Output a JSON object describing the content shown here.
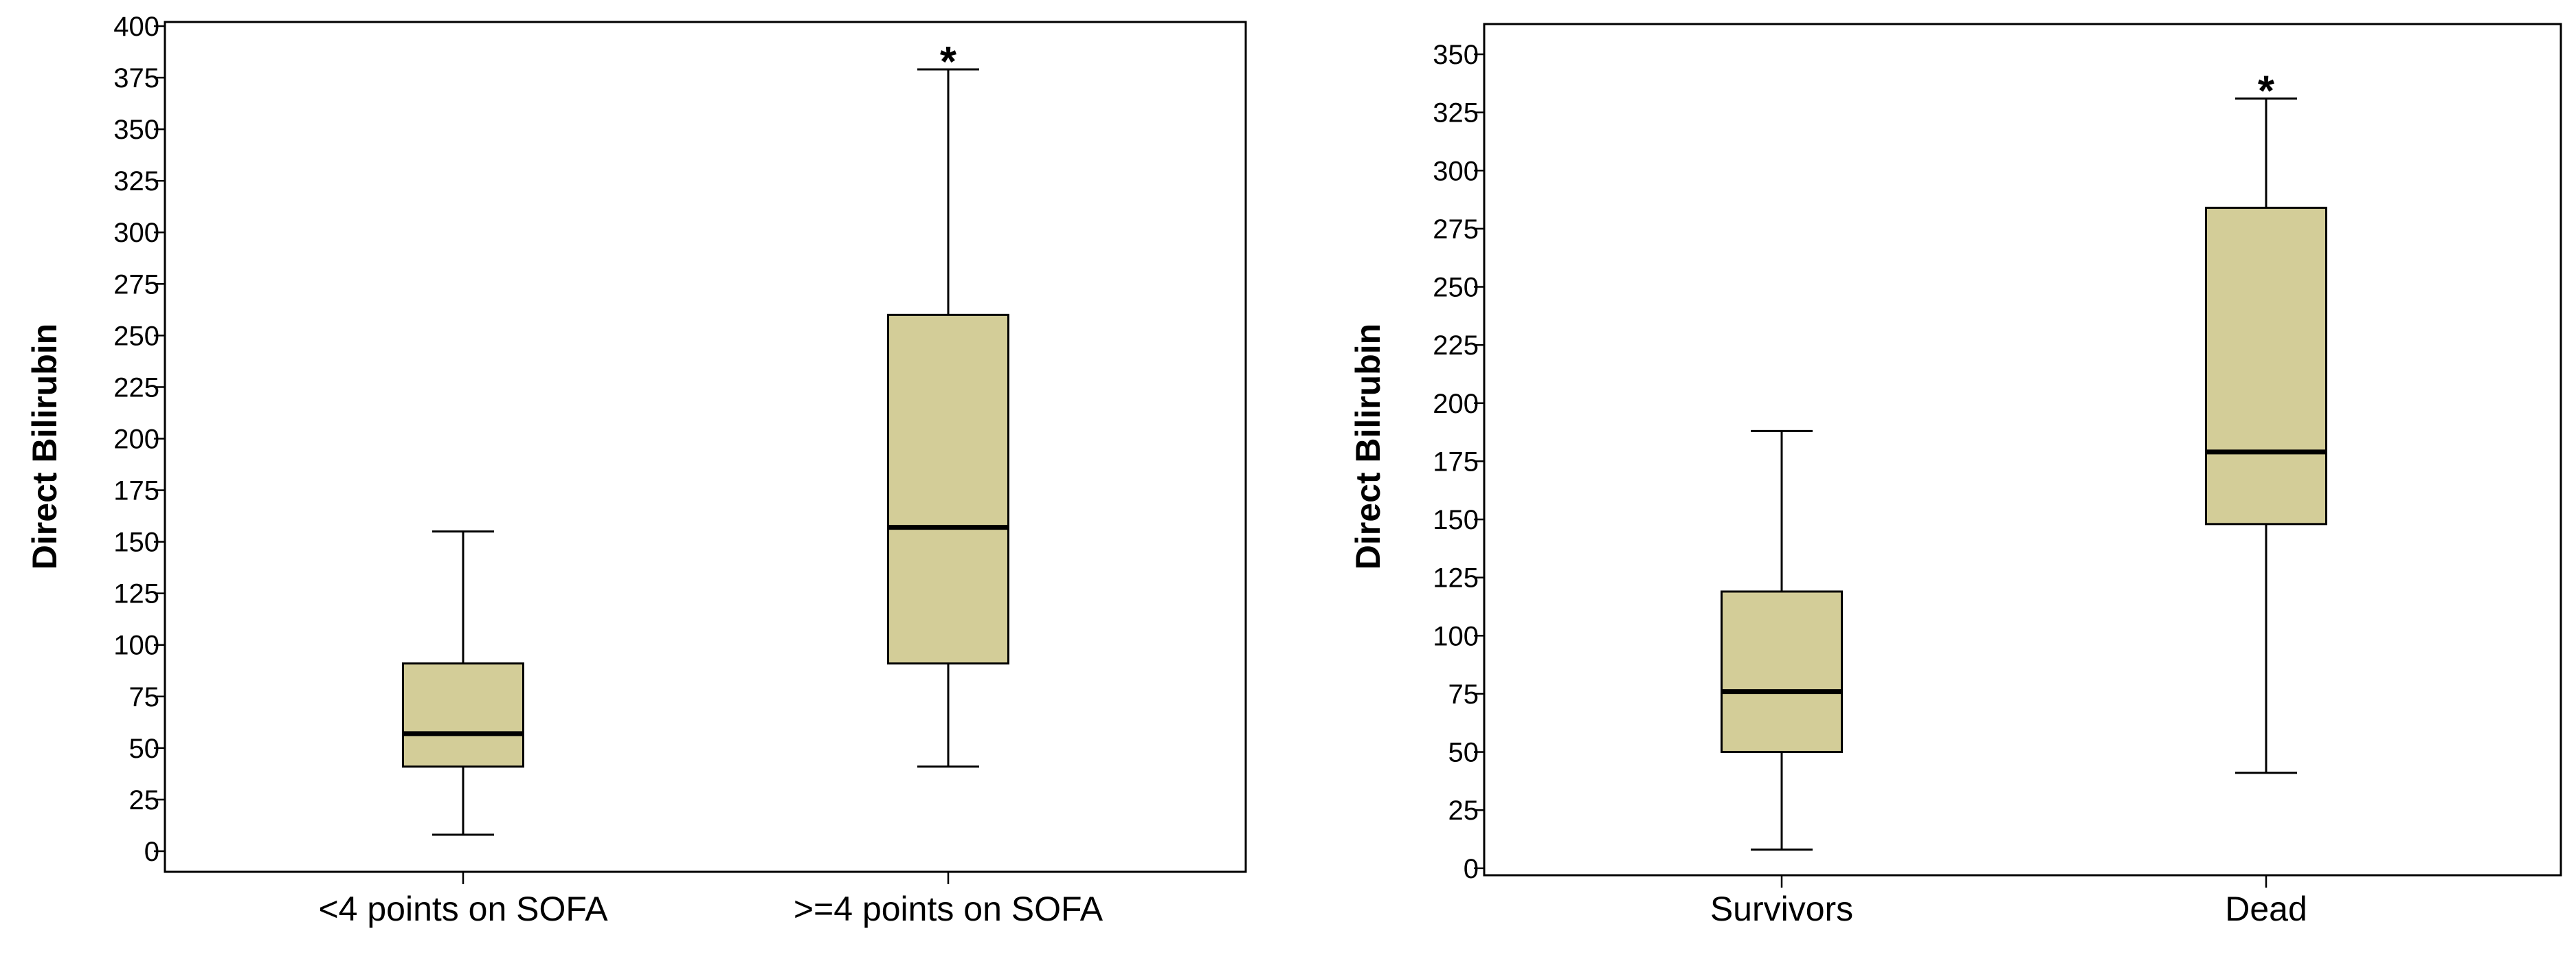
{
  "chart_data": [
    {
      "type": "box",
      "title": "",
      "ylabel": "Direct Bilirubin",
      "xlabel": "",
      "ylim": [
        -10,
        402
      ],
      "yticks": [
        0,
        25,
        50,
        75,
        100,
        125,
        150,
        175,
        200,
        225,
        250,
        275,
        300,
        325,
        350,
        375,
        400
      ],
      "categories": [
        "<4 points on SOFA",
        ">=4 points on SOFA"
      ],
      "boxes": [
        {
          "category": "<4 points on SOFA",
          "whisker_low": 8,
          "q1": 41,
          "median": 57,
          "q3": 91,
          "whisker_high": 155
        },
        {
          "category": ">=4 points on SOFA",
          "whisker_low": 41,
          "q1": 91,
          "median": 157,
          "q3": 260,
          "whisker_high": 379
        }
      ],
      "annotations": [
        {
          "category": ">=4 points on SOFA",
          "text": "*",
          "position": "above-whisker"
        }
      ],
      "colors": {
        "box_fill": "#d3cd98",
        "stroke": "#000000",
        "frame": "#000000"
      }
    },
    {
      "type": "box",
      "title": "",
      "ylabel": "Direct Bilirubin",
      "xlabel": "",
      "ylim": [
        -3,
        363
      ],
      "yticks": [
        0,
        25,
        50,
        75,
        100,
        125,
        150,
        175,
        200,
        225,
        250,
        275,
        300,
        325,
        350
      ],
      "categories": [
        "Survivors",
        "Dead"
      ],
      "boxes": [
        {
          "category": "Survivors",
          "whisker_low": 8,
          "q1": 50,
          "median": 76,
          "q3": 119,
          "whisker_high": 188
        },
        {
          "category": "Dead",
          "whisker_low": 41,
          "q1": 148,
          "median": 179,
          "q3": 284,
          "whisker_high": 331
        }
      ],
      "annotations": [
        {
          "category": "Dead",
          "text": "*",
          "position": "above-whisker"
        }
      ],
      "colors": {
        "box_fill": "#d3cd98",
        "stroke": "#000000",
        "frame": "#000000"
      }
    }
  ]
}
